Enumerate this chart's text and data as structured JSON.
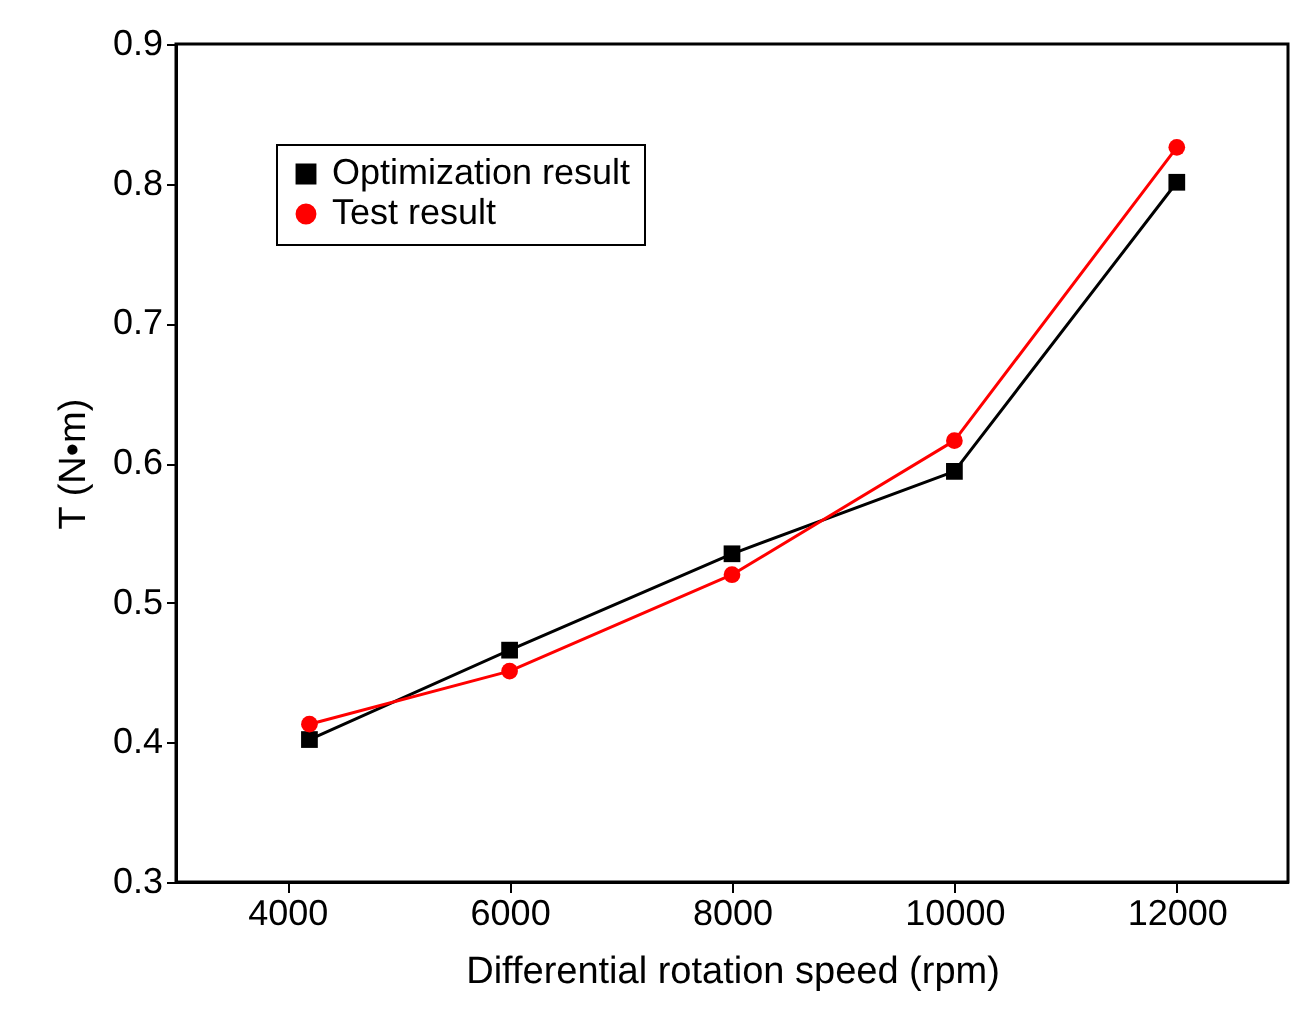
{
  "chart_data": {
    "type": "line",
    "xlabel": "Differential rotation speed (rpm)",
    "ylabel": "T (N•m)",
    "x": [
      4200,
      6000,
      8000,
      10000,
      12000
    ],
    "series": [
      {
        "name": "Optimization result",
        "color": "#000000",
        "marker": "square",
        "values": [
          0.402,
          0.466,
          0.535,
          0.594,
          0.801
        ]
      },
      {
        "name": "Test result",
        "color": "#ff0000",
        "marker": "circle",
        "values": [
          0.413,
          0.451,
          0.52,
          0.616,
          0.826
        ]
      }
    ],
    "xlim": [
      3000,
      13000
    ],
    "xticks": [
      4000,
      6000,
      8000,
      10000,
      12000
    ],
    "ylim": [
      0.3,
      0.9
    ],
    "yticks": [
      0.3,
      0.4,
      0.5,
      0.6,
      0.7,
      0.8,
      0.9
    ],
    "grid": false,
    "legend": "top left",
    "line_style": "solid"
  }
}
